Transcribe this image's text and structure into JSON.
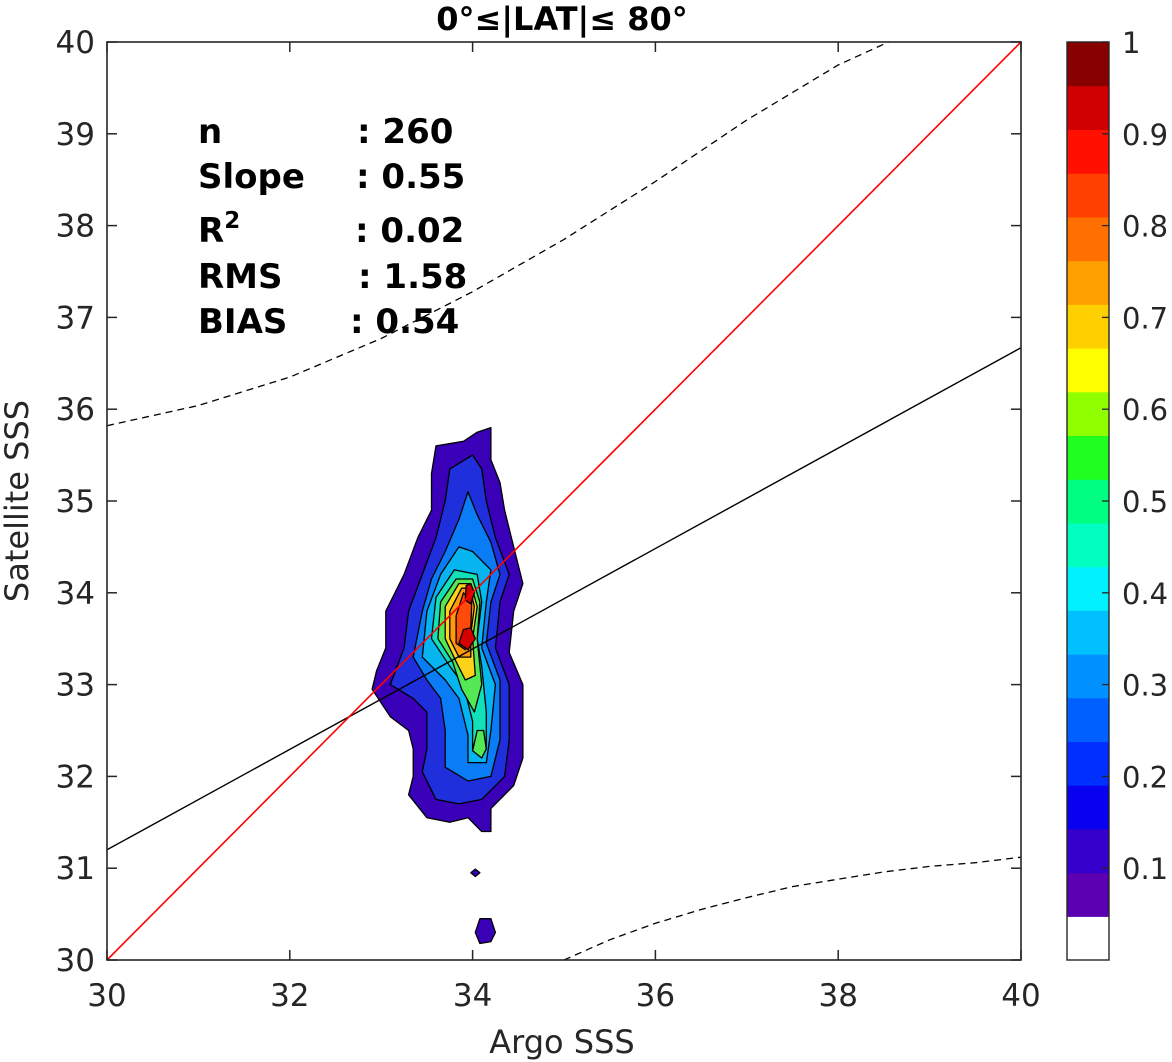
{
  "chart_data": {
    "type": "contour",
    "title": "0°≤|LAT|≤ 80°",
    "xlabel": "Argo SSS",
    "ylabel": "Satellite SSS",
    "xlim": [
      30,
      40
    ],
    "ylim": [
      30,
      40
    ],
    "xticks": [
      "30",
      "32",
      "34",
      "36",
      "38",
      "40"
    ],
    "yticks": [
      "30",
      "31",
      "32",
      "33",
      "34",
      "35",
      "36",
      "37",
      "38",
      "39",
      "40"
    ],
    "grid": true,
    "stats": [
      {
        "label": "n",
        "value": ": 260"
      },
      {
        "label": "Slope",
        "value": ": 0.55"
      },
      {
        "label": "R",
        "sup": "2",
        "value": ": 0.02"
      },
      {
        "label": "RMS",
        "value": ": 1.58"
      },
      {
        "label": "BIAS",
        "value": ": 0.54"
      }
    ],
    "one_to_one_line": {
      "color": "#ff0000",
      "x": [
        30,
        40
      ],
      "y": [
        30,
        40
      ]
    },
    "regression_line": {
      "color": "#000000",
      "slope": 0.55,
      "x": [
        30,
        40
      ],
      "y": [
        31.2,
        36.67
      ]
    },
    "confidence_bounds": {
      "upper": {
        "x": [
          30,
          31,
          32,
          33,
          34,
          35,
          36,
          37,
          38,
          38.55
        ],
        "y": [
          35.82,
          36.04,
          36.35,
          36.77,
          37.28,
          37.85,
          38.48,
          39.15,
          39.75,
          40
        ]
      },
      "lower": {
        "x": [
          35,
          35.5,
          36,
          36.5,
          37,
          37.5,
          38,
          38.5,
          39,
          39.5,
          40
        ],
        "y": [
          30,
          30.22,
          30.4,
          30.55,
          30.68,
          30.8,
          30.88,
          30.96,
          31.02,
          31.06,
          31.12
        ]
      }
    },
    "density_levels": [
      {
        "level": 0.05,
        "color": "#3a00b8",
        "polygons": [
          [
            [
              34.2,
              35.8
            ],
            [
              34.05,
              35.75
            ],
            [
              33.9,
              35.65
            ],
            [
              33.6,
              35.6
            ],
            [
              33.55,
              35.3
            ],
            [
              33.55,
              34.9
            ],
            [
              33.4,
              34.6
            ],
            [
              33.25,
              34.2
            ],
            [
              33.05,
              33.8
            ],
            [
              33.05,
              33.4
            ],
            [
              32.95,
              33.15
            ],
            [
              32.9,
              32.95
            ],
            [
              33.1,
              32.65
            ],
            [
              33.3,
              32.5
            ],
            [
              33.35,
              32.3
            ],
            [
              33.35,
              32.0
            ],
            [
              33.3,
              31.8
            ],
            [
              33.5,
              31.55
            ],
            [
              33.75,
              31.5
            ],
            [
              33.95,
              31.55
            ],
            [
              34.1,
              31.4
            ],
            [
              34.2,
              31.4
            ],
            [
              34.2,
              31.65
            ],
            [
              34.45,
              31.9
            ],
            [
              34.55,
              32.2
            ],
            [
              34.55,
              33.0
            ],
            [
              34.4,
              33.35
            ],
            [
              34.45,
              33.8
            ],
            [
              34.55,
              34.1
            ],
            [
              34.45,
              34.5
            ],
            [
              34.35,
              34.9
            ],
            [
              34.3,
              35.2
            ],
            [
              34.2,
              35.45
            ]
          ],
          [
            [
              33.98,
              30.95
            ],
            [
              34.03,
              30.91
            ],
            [
              34.08,
              30.95
            ],
            [
              34.03,
              30.99
            ]
          ],
          [
            [
              34.08,
              30.18
            ],
            [
              34.2,
              30.2
            ],
            [
              34.25,
              30.3
            ],
            [
              34.2,
              30.45
            ],
            [
              34.08,
              30.45
            ],
            [
              34.03,
              30.3
            ]
          ]
        ]
      },
      {
        "level": 0.15,
        "color": "#1e2fdb",
        "polygons": [
          [
            [
              34.0,
              35.5
            ],
            [
              33.75,
              35.35
            ],
            [
              33.7,
              35.0
            ],
            [
              33.6,
              34.6
            ],
            [
              33.45,
              34.2
            ],
            [
              33.3,
              33.8
            ],
            [
              33.25,
              33.4
            ],
            [
              33.1,
              33.0
            ],
            [
              33.35,
              32.85
            ],
            [
              33.5,
              32.7
            ],
            [
              33.5,
              32.3
            ],
            [
              33.45,
              32.05
            ],
            [
              33.6,
              31.75
            ],
            [
              33.85,
              31.7
            ],
            [
              34.1,
              31.75
            ],
            [
              34.35,
              32.0
            ],
            [
              34.4,
              32.4
            ],
            [
              34.4,
              33.0
            ],
            [
              34.25,
              33.4
            ],
            [
              34.3,
              33.9
            ],
            [
              34.4,
              34.2
            ],
            [
              34.25,
              34.6
            ],
            [
              34.15,
              35.0
            ],
            [
              34.1,
              35.35
            ]
          ]
        ]
      },
      {
        "level": 0.25,
        "color": "#0a7cf5",
        "polygons": [
          [
            [
              33.95,
              35.1
            ],
            [
              33.85,
              34.8
            ],
            [
              33.7,
              34.45
            ],
            [
              33.55,
              34.15
            ],
            [
              33.45,
              33.8
            ],
            [
              33.35,
              33.3
            ],
            [
              33.5,
              33.05
            ],
            [
              33.65,
              32.85
            ],
            [
              33.7,
              32.5
            ],
            [
              33.7,
              32.1
            ],
            [
              33.95,
              31.95
            ],
            [
              34.2,
              32.0
            ],
            [
              34.3,
              32.4
            ],
            [
              34.3,
              33.05
            ],
            [
              34.15,
              33.45
            ],
            [
              34.2,
              33.9
            ],
            [
              34.3,
              34.2
            ],
            [
              34.2,
              34.55
            ],
            [
              34.05,
              34.85
            ]
          ]
        ]
      },
      {
        "level": 0.35,
        "color": "#06b4f0",
        "polygons": [
          [
            [
              33.85,
              34.5
            ],
            [
              33.65,
              34.2
            ],
            [
              33.5,
              33.8
            ],
            [
              33.45,
              33.3
            ],
            [
              33.7,
              33.05
            ],
            [
              33.85,
              32.85
            ],
            [
              33.95,
              32.45
            ],
            [
              33.95,
              32.15
            ],
            [
              34.15,
              32.15
            ],
            [
              34.2,
              32.5
            ],
            [
              34.25,
              33.0
            ],
            [
              34.1,
              33.4
            ],
            [
              34.15,
              33.9
            ],
            [
              34.2,
              34.25
            ],
            [
              34.0,
              34.45
            ]
          ]
        ]
      },
      {
        "level": 0.45,
        "color": "#11e0b8",
        "polygons": [
          [
            [
              33.8,
              34.25
            ],
            [
              33.6,
              33.95
            ],
            [
              33.55,
              33.5
            ],
            [
              33.75,
              33.2
            ],
            [
              33.9,
              33.0
            ],
            [
              34.0,
              32.6
            ],
            [
              34.0,
              32.3
            ],
            [
              34.15,
              32.3
            ],
            [
              34.15,
              32.7
            ],
            [
              34.1,
              33.2
            ],
            [
              34.05,
              33.5
            ],
            [
              34.1,
              33.9
            ],
            [
              34.05,
              34.2
            ]
          ]
        ]
      },
      {
        "level": 0.55,
        "color": "#55e855",
        "polygons": [
          [
            [
              33.82,
              34.15
            ],
            [
              33.65,
              33.9
            ],
            [
              33.62,
              33.5
            ],
            [
              33.78,
              33.25
            ],
            [
              33.88,
              32.95
            ],
            [
              34.02,
              32.7
            ],
            [
              34.1,
              33.0
            ],
            [
              34.05,
              33.5
            ],
            [
              34.08,
              33.9
            ],
            [
              34.0,
              34.15
            ]
          ],
          [
            [
              34.05,
              32.5
            ],
            [
              34.0,
              32.28
            ],
            [
              34.1,
              32.2
            ],
            [
              34.15,
              32.3
            ],
            [
              34.12,
              32.5
            ]
          ]
        ]
      },
      {
        "level": 0.65,
        "color": "#ffd21a",
        "polygons": [
          [
            [
              33.85,
              34.1
            ],
            [
              33.7,
              33.85
            ],
            [
              33.7,
              33.5
            ],
            [
              33.82,
              33.25
            ],
            [
              33.92,
              33.05
            ],
            [
              34.03,
              33.1
            ],
            [
              34.0,
              33.5
            ],
            [
              34.05,
              33.85
            ],
            [
              33.98,
              34.1
            ]
          ]
        ]
      },
      {
        "level": 0.75,
        "color": "#ff9a0a",
        "polygons": [
          [
            [
              33.88,
              34.05
            ],
            [
              33.75,
              33.8
            ],
            [
              33.75,
              33.5
            ],
            [
              33.85,
              33.3
            ],
            [
              33.98,
              33.3
            ],
            [
              33.98,
              33.55
            ],
            [
              34.02,
              33.85
            ],
            [
              33.97,
              34.05
            ]
          ]
        ]
      },
      {
        "level": 0.85,
        "color": "#ff4a0a",
        "polygons": [
          [
            [
              33.9,
              34.0
            ],
            [
              33.82,
              33.75
            ],
            [
              33.82,
              33.45
            ],
            [
              33.92,
              33.38
            ],
            [
              33.98,
              33.6
            ],
            [
              33.99,
              33.9
            ]
          ]
        ]
      },
      {
        "level": 0.95,
        "color": "#d40000",
        "polygons": [
          [
            [
              33.93,
              34.08
            ],
            [
              33.92,
              33.92
            ],
            [
              33.98,
              33.88
            ],
            [
              34.02,
              34.0
            ],
            [
              33.98,
              34.1
            ]
          ],
          [
            [
              33.9,
              33.6
            ],
            [
              33.85,
              33.45
            ],
            [
              33.95,
              33.38
            ],
            [
              34.03,
              33.5
            ],
            [
              33.98,
              33.62
            ]
          ]
        ]
      }
    ],
    "colorbar": {
      "range": [
        0,
        1
      ],
      "ticks": [
        "0.1",
        "0.2",
        "0.3",
        "0.4",
        "0.5",
        "0.6",
        "0.7",
        "0.8",
        "0.9",
        "1"
      ],
      "colors": [
        "#ffffff",
        "#5a00b0",
        "#3500cc",
        "#0a00f0",
        "#0030ff",
        "#0060ff",
        "#0090ff",
        "#00c0ff",
        "#00f0ff",
        "#00ffc0",
        "#00ff80",
        "#20ff20",
        "#90ff00",
        "#ffff00",
        "#ffd000",
        "#ffa000",
        "#ff7000",
        "#ff4000",
        "#ff1000",
        "#d00000",
        "#880000"
      ]
    }
  }
}
